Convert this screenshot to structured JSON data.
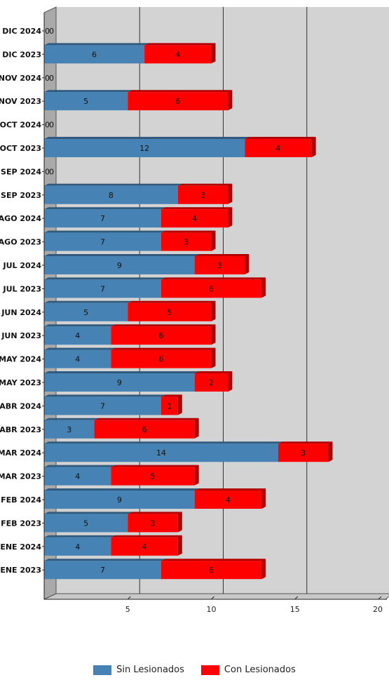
{
  "chart_data": {
    "type": "bar",
    "orientation": "horizontal",
    "stacked": true,
    "categories": [
      "DIC 2024",
      "DIC 2023",
      "NOV 2024",
      "NOV 2023",
      "OCT 2024",
      "OCT 2023",
      "SEP 2024",
      "SEP 2023",
      "AGO 2024",
      "AGO 2023",
      "JUL 2024",
      "JUL 2023",
      "JUN 2024",
      "JUN 2023",
      "MAY 2024",
      "MAY 2023",
      "ABR 2024",
      "ABR 2023",
      "MAR 2024",
      "MAR 2023",
      "FEB 2024",
      "FEB 2023",
      "ENE 2024",
      "ENE 2023"
    ],
    "series": [
      {
        "name": "Sin Lesionados",
        "color": "#4682B4",
        "values": [
          0,
          6,
          0,
          5,
          0,
          12,
          0,
          8,
          7,
          7,
          9,
          7,
          5,
          4,
          4,
          9,
          7,
          3,
          14,
          4,
          9,
          5,
          4,
          7
        ]
      },
      {
        "name": "Con Lesionados",
        "color": "#FF0000",
        "values": [
          0,
          4,
          0,
          6,
          0,
          4,
          0,
          3,
          4,
          3,
          3,
          6,
          5,
          6,
          6,
          2,
          1,
          6,
          3,
          5,
          4,
          3,
          4,
          6
        ]
      }
    ],
    "x_ticks": [
      5,
      10,
      15,
      20
    ],
    "xlim": [
      0,
      20
    ],
    "grid": true,
    "three_d": true,
    "legend_position": "bottom"
  }
}
